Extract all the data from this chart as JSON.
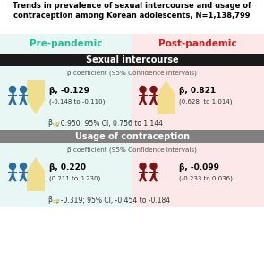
{
  "title_line1": "Trends in prevalence of sexual intercourse and usage of",
  "title_line2": "contraception among Korean adolescents, N=1,138,799",
  "pre_pandemic_label": "Pre-pandemic",
  "post_pandemic_label": "Post-pandemic",
  "section1_title": "Sexual intercourse",
  "section2_title": "Usage of contraception",
  "beta_coeff_label": "β coefficient (95% Confidence intervals)",
  "pre_color": "#2db898",
  "post_color": "#cc2222",
  "pre_bg": "#e8f7f4",
  "post_bg": "#fce8e8",
  "icon_color_pre": "#2e6da4",
  "icon_color_post": "#7a1515",
  "section1_bg": "#1a1a1a",
  "section2_bg": "#808080",
  "arrow_color": "#f0dc82",
  "sex_pre_beta": "β, -0.129",
  "sex_pre_ci": "(-0.148 to -0.110)",
  "sex_post_beta": "β, 0.821",
  "sex_post_ci": "(0.628  to 1.014)",
  "sex_diff_prefix": "β",
  "sex_diff_sub": "diff",
  "sex_diff_suffix": ", 0.950; 95% CI, 0.756 to 1.144",
  "contra_pre_beta": "β, 0.220",
  "contra_pre_ci": "(0.211 to 0.230)",
  "contra_post_beta": "β, -0.099",
  "contra_post_ci": "(-0.233 to 0.036)",
  "contra_diff_prefix": "β",
  "contra_diff_sub": "diff",
  "contra_diff_suffix": ", -0.319; 95% CI, -0.454 to -0.184"
}
